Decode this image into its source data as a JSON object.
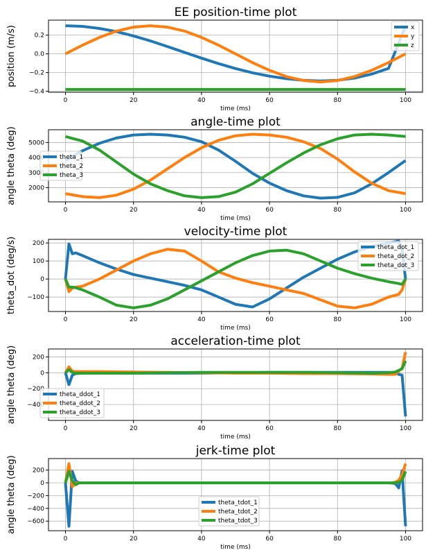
{
  "chart_data": [
    {
      "type": "line",
      "title": "EE position-time plot",
      "xlabel": "time (ms)",
      "ylabel": "position (m/s)",
      "xlim": [
        -5,
        105
      ],
      "ylim": [
        -0.41,
        0.36
      ],
      "xticks": [
        0,
        20,
        40,
        60,
        80,
        100
      ],
      "yticks": [
        -0.4,
        -0.2,
        0.0,
        0.2
      ],
      "xtick_labels": [
        "0",
        "20",
        "40",
        "60",
        "80",
        "100"
      ],
      "ytick_labels": [
        "−0.4",
        "−0.2",
        "0.0",
        "0.2"
      ],
      "grid": true,
      "legend_position": "upper right",
      "x": [
        0,
        5,
        10,
        15,
        20,
        25,
        30,
        35,
        40,
        45,
        50,
        55,
        60,
        65,
        70,
        75,
        80,
        85,
        90,
        95,
        100
      ],
      "series": [
        {
          "name": "x",
          "color": "#1f77b4",
          "values": [
            0.3,
            0.293,
            0.271,
            0.237,
            0.191,
            0.138,
            0.078,
            0.016,
            -0.046,
            -0.104,
            -0.157,
            -0.202,
            -0.238,
            -0.265,
            -0.282,
            -0.29,
            -0.282,
            -0.258,
            -0.216,
            -0.155,
            0.3
          ]
        },
        {
          "name": "y",
          "color": "#ff7f0e",
          "values": [
            0.0,
            0.093,
            0.176,
            0.243,
            0.285,
            0.3,
            0.285,
            0.243,
            0.176,
            0.093,
            0.0,
            -0.093,
            -0.176,
            -0.243,
            -0.285,
            -0.3,
            -0.285,
            -0.243,
            -0.176,
            -0.093,
            0.0
          ]
        },
        {
          "name": "z",
          "color": "#2ca02c",
          "values": [
            -0.38,
            -0.38,
            -0.38,
            -0.38,
            -0.38,
            -0.38,
            -0.38,
            -0.38,
            -0.38,
            -0.38,
            -0.38,
            -0.38,
            -0.38,
            -0.38,
            -0.38,
            -0.38,
            -0.38,
            -0.38,
            -0.38,
            -0.38,
            -0.38
          ]
        }
      ]
    },
    {
      "type": "line",
      "title": "angle-time plot",
      "xlabel": "time (ms)",
      "ylabel": "angle theta (deg)",
      "xlim": [
        -5,
        105
      ],
      "ylim": [
        1050,
        5850
      ],
      "xticks": [
        0,
        20,
        40,
        60,
        80,
        100
      ],
      "yticks": [
        2000,
        3000,
        4000,
        5000
      ],
      "xtick_labels": [
        "0",
        "20",
        "40",
        "60",
        "80",
        "100"
      ],
      "ytick_labels": [
        "2000",
        "3000",
        "4000",
        "5000"
      ],
      "grid": true,
      "legend_position": "center left",
      "x": [
        0,
        5,
        10,
        15,
        20,
        25,
        30,
        35,
        40,
        45,
        50,
        55,
        60,
        65,
        70,
        75,
        80,
        85,
        90,
        95,
        100
      ],
      "series": [
        {
          "name": "theta_1",
          "color": "#1f77b4",
          "values": [
            3800,
            4450,
            4950,
            5300,
            5500,
            5550,
            5500,
            5350,
            5050,
            4500,
            3750,
            2950,
            2300,
            1800,
            1450,
            1300,
            1350,
            1650,
            2250,
            3000,
            3800
          ]
        },
        {
          "name": "theta_2",
          "color": "#ff7f0e",
          "values": [
            1600,
            1400,
            1330,
            1500,
            1900,
            2500,
            3250,
            4000,
            4650,
            5150,
            5450,
            5550,
            5500,
            5350,
            5050,
            4600,
            3900,
            3050,
            2300,
            1800,
            1600
          ]
        },
        {
          "name": "theta_3",
          "color": "#2ca02c",
          "values": [
            5400,
            5100,
            4500,
            3700,
            2900,
            2250,
            1800,
            1450,
            1330,
            1400,
            1700,
            2250,
            2950,
            3650,
            4300,
            4850,
            5250,
            5500,
            5550,
            5500,
            5400
          ]
        }
      ]
    },
    {
      "type": "line",
      "title": "velocity-time plot",
      "xlabel": "time (ms)",
      "ylabel": "theta_dot (deg/s)",
      "xlim": [
        -5,
        105
      ],
      "ylim": [
        -180,
        220
      ],
      "xticks": [
        0,
        20,
        40,
        60,
        80,
        100
      ],
      "yticks": [
        -100,
        0,
        100,
        200
      ],
      "xtick_labels": [
        "0",
        "20",
        "40",
        "60",
        "80",
        "100"
      ],
      "ytick_labels": [
        "−100",
        "0",
        "100",
        "200"
      ],
      "grid": true,
      "legend_position": "upper right",
      "x": [
        0,
        1,
        2,
        3,
        5,
        10,
        15,
        20,
        25,
        30,
        35,
        40,
        45,
        50,
        55,
        60,
        65,
        70,
        75,
        80,
        85,
        90,
        95,
        98,
        99,
        100
      ],
      "series": [
        {
          "name": "theta_dot_1",
          "color": "#1f77b4",
          "values": [
            0,
            195,
            140,
            145,
            130,
            90,
            55,
            25,
            5,
            -15,
            -35,
            -60,
            -100,
            -140,
            -155,
            -110,
            -50,
            10,
            60,
            110,
            150,
            180,
            200,
            210,
            160,
            0
          ]
        },
        {
          "name": "theta_dot_2",
          "color": "#ff7f0e",
          "values": [
            0,
            -70,
            -50,
            -45,
            -40,
            0,
            50,
            100,
            140,
            165,
            155,
            100,
            40,
            5,
            -20,
            -40,
            -60,
            -80,
            -115,
            -150,
            -160,
            -140,
            -100,
            -85,
            -60,
            0
          ]
        },
        {
          "name": "theta_dot_3",
          "color": "#2ca02c",
          "values": [
            0,
            -45,
            -45,
            -48,
            -60,
            -100,
            -145,
            -160,
            -145,
            -110,
            -60,
            -10,
            40,
            90,
            130,
            155,
            160,
            140,
            100,
            60,
            30,
            5,
            -15,
            -25,
            -30,
            0
          ]
        }
      ]
    },
    {
      "type": "line",
      "title": "acceleration-time plot",
      "xlabel": "time (ms)",
      "ylabel": "angle theta (deg)",
      "xlim": [
        -5,
        105
      ],
      "ylim": [
        -600,
        300
      ],
      "xticks": [
        0,
        20,
        40,
        60,
        80,
        100
      ],
      "yticks": [
        -400,
        -200,
        0,
        200
      ],
      "xtick_labels": [
        "0",
        "20",
        "40",
        "60",
        "80",
        "100"
      ],
      "ytick_labels": [
        "−400",
        "−200",
        "0",
        "200"
      ],
      "grid": true,
      "legend_position": "lower left",
      "x": [
        0,
        1,
        2,
        3,
        5,
        10,
        20,
        30,
        40,
        50,
        60,
        70,
        80,
        90,
        95,
        97,
        98,
        99,
        100
      ],
      "series": [
        {
          "name": "theta_ddot_1",
          "color": "#1f77b4",
          "values": [
            0,
            -150,
            -30,
            -10,
            -5,
            -5,
            -5,
            -5,
            -5,
            0,
            5,
            5,
            5,
            5,
            5,
            0,
            -20,
            -30,
            -550
          ]
        },
        {
          "name": "theta_ddot_2",
          "color": "#ff7f0e",
          "values": [
            0,
            75,
            20,
            15,
            15,
            15,
            10,
            5,
            0,
            -5,
            -5,
            -10,
            -10,
            -15,
            -20,
            -20,
            20,
            60,
            260
          ]
        },
        {
          "name": "theta_ddot_3",
          "color": "#2ca02c",
          "values": [
            0,
            40,
            5,
            -5,
            -5,
            -5,
            -5,
            0,
            5,
            5,
            5,
            5,
            0,
            -5,
            0,
            10,
            30,
            50,
            150
          ]
        }
      ]
    },
    {
      "type": "line",
      "title": "jerk-time plot",
      "xlabel": "time (ms)",
      "ylabel": "angle theta (deg)",
      "xlim": [
        -5,
        105
      ],
      "ylim": [
        -750,
        380
      ],
      "xticks": [
        0,
        20,
        40,
        60,
        80,
        100
      ],
      "yticks": [
        -600,
        -400,
        -200,
        0,
        200
      ],
      "xtick_labels": [
        "0",
        "20",
        "40",
        "60",
        "80",
        "100"
      ],
      "ytick_labels": [
        "−600",
        "−400",
        "−200",
        "0",
        "200"
      ],
      "grid": true,
      "legend_position": "lower center",
      "x": [
        0,
        1,
        2,
        3,
        4,
        5,
        10,
        50,
        90,
        95,
        96,
        97,
        98,
        99,
        100
      ],
      "series": [
        {
          "name": "theta_tdot_1",
          "color": "#1f77b4",
          "values": [
            0,
            -680,
            180,
            30,
            0,
            0,
            0,
            0,
            0,
            0,
            -5,
            -10,
            -80,
            190,
            -680
          ]
        },
        {
          "name": "theta_tdot_2",
          "color": "#ff7f0e",
          "values": [
            0,
            300,
            -60,
            0,
            0,
            0,
            0,
            0,
            0,
            0,
            0,
            10,
            40,
            130,
            300
          ]
        },
        {
          "name": "theta_tdot_3",
          "color": "#2ca02c",
          "values": [
            0,
            180,
            30,
            -30,
            0,
            0,
            0,
            0,
            0,
            0,
            0,
            0,
            10,
            40,
            180
          ]
        }
      ]
    }
  ]
}
